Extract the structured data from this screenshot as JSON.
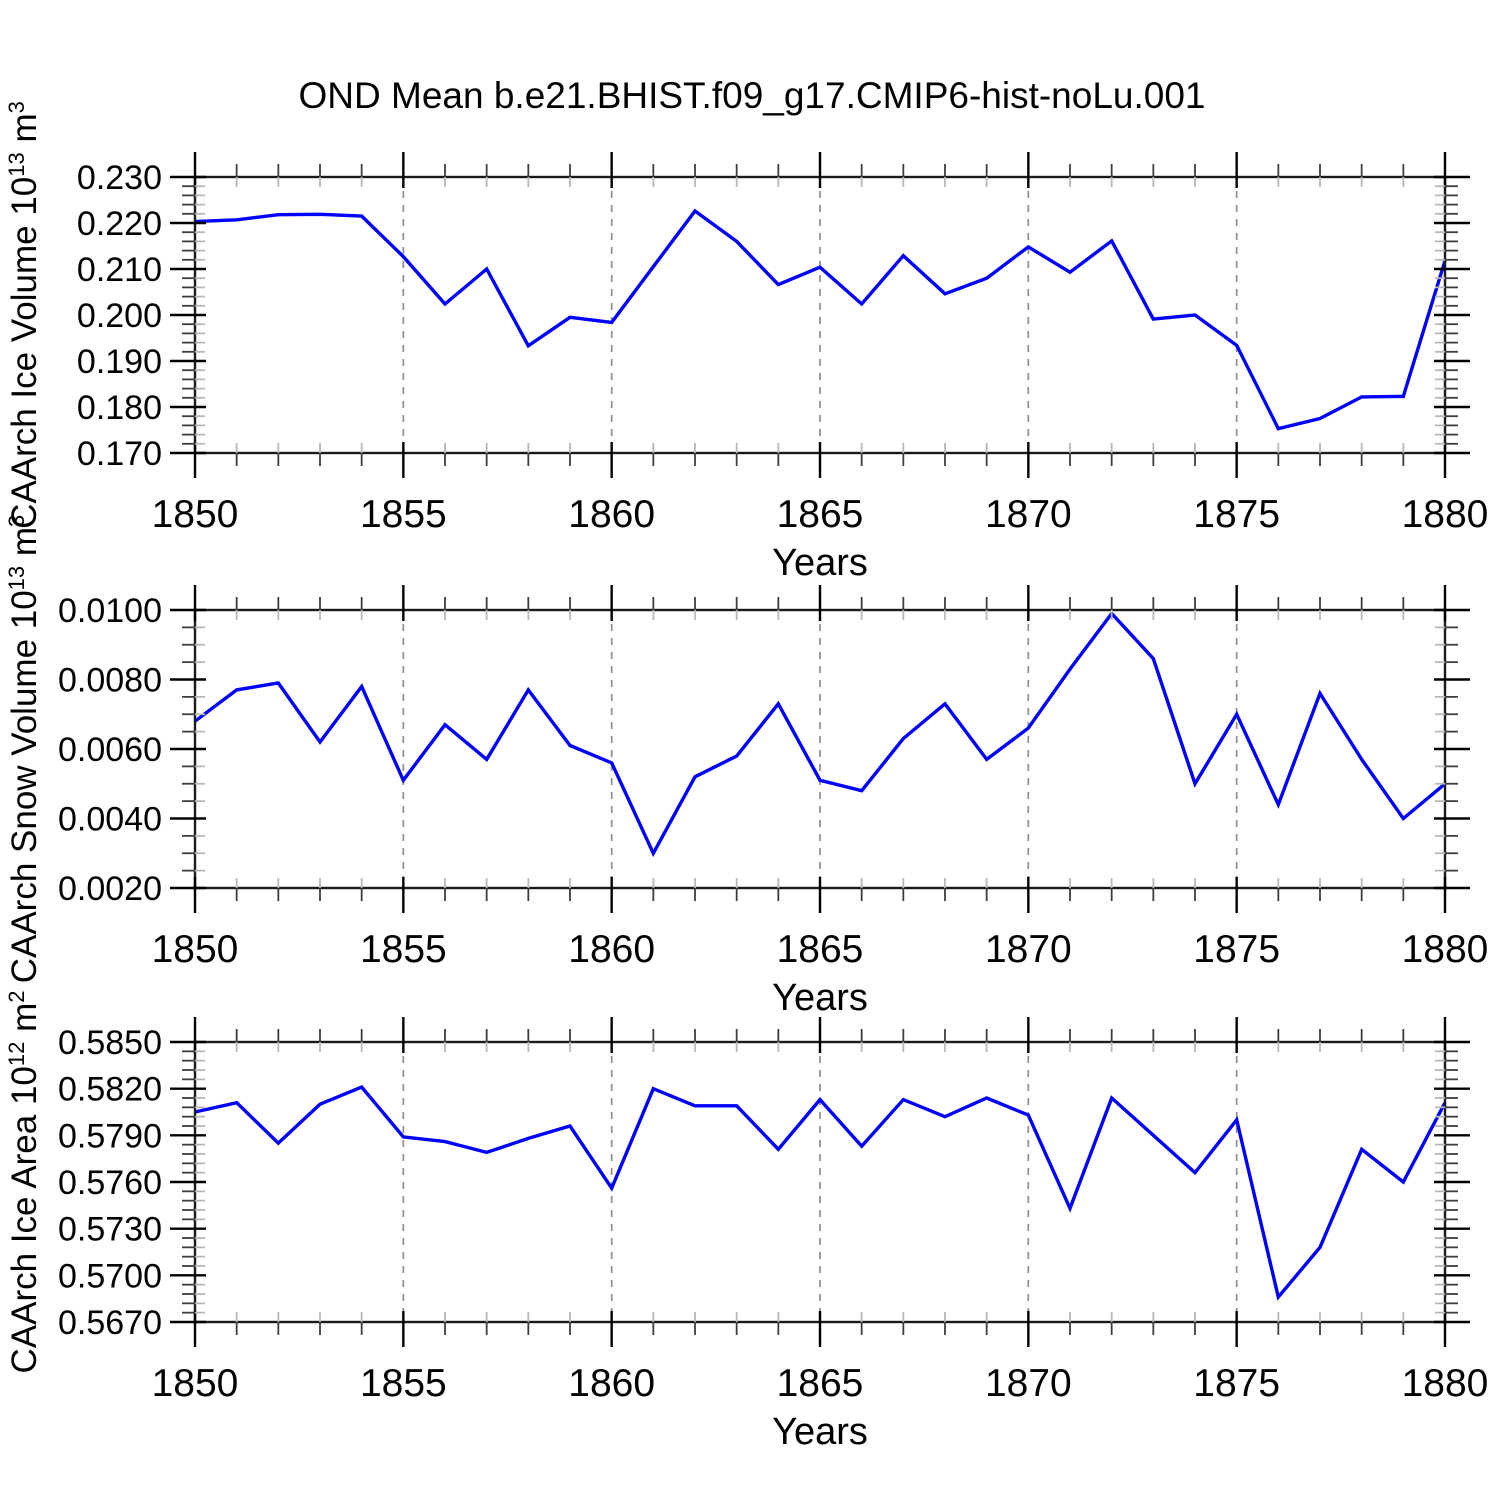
{
  "title": "OND Mean b.e21.BHIST.f09_g17.CMIP6-hist-noLu.001",
  "colors": {
    "line": "#0000ff",
    "border": "#1a1a1a",
    "major_tick": "#000000",
    "minor_tick": "#3d3d3d",
    "minor_tick_inner": "#b8b8b8",
    "gridline": "#8e8e8e",
    "text": "#000000",
    "background": "#ffffff"
  },
  "x_axis": {
    "label": "Years",
    "min": 1850,
    "max": 1880,
    "minor_step": 1,
    "major_tick_values": [
      1850,
      1855,
      1860,
      1865,
      1870,
      1875,
      1880
    ],
    "major_tick_labels": [
      "1850",
      "1855",
      "1860",
      "1865",
      "1870",
      "1875",
      "1880"
    ],
    "gridline_values": [
      1855,
      1860,
      1865,
      1870,
      1875
    ]
  },
  "chart_data": [
    {
      "type": "line",
      "name": "ice-volume",
      "ylabel_segments": [
        {
          "text": "CAArch Ice Volume 10",
          "sup": false
        },
        {
          "text": "13",
          "sup": true
        },
        {
          "text": " m",
          "sup": false
        },
        {
          "text": "3",
          "sup": true
        }
      ],
      "xlabel": "Years",
      "ymin": 0.17,
      "ymax": 0.23,
      "ymajor": 0.01,
      "yminor": 0.002,
      "ytick_labels": [
        "0.170",
        "0.180",
        "0.190",
        "0.200",
        "0.210",
        "0.220",
        "0.230"
      ],
      "years": [
        1850,
        1851,
        1852,
        1853,
        1854,
        1855,
        1856,
        1857,
        1858,
        1859,
        1860,
        1861,
        1862,
        1863,
        1864,
        1865,
        1866,
        1867,
        1868,
        1869,
        1870,
        1871,
        1872,
        1873,
        1874,
        1875,
        1876,
        1877,
        1878,
        1879,
        1880
      ],
      "values": [
        0.2203,
        0.2207,
        0.2218,
        0.2219,
        0.2215,
        0.2127,
        0.2024,
        0.21,
        0.1933,
        0.1995,
        0.1984,
        0.2105,
        0.2226,
        0.216,
        0.2066,
        0.2104,
        0.2024,
        0.2129,
        0.2046,
        0.208,
        0.2148,
        0.2093,
        0.2161,
        0.1991,
        0.2,
        0.1934,
        0.1753,
        0.1775,
        0.1822,
        0.1823,
        0.2118
      ]
    },
    {
      "type": "line",
      "name": "snow-volume",
      "ylabel_segments": [
        {
          "text": "CAArch Snow Volume 10",
          "sup": false
        },
        {
          "text": "13",
          "sup": true
        },
        {
          "text": " m",
          "sup": false
        },
        {
          "text": "3",
          "sup": true
        }
      ],
      "xlabel": "Years",
      "ymin": 0.002,
      "ymax": 0.01,
      "ymajor": 0.002,
      "yminor": 0.0005,
      "ytick_labels": [
        "0.0020",
        "0.0040",
        "0.0060",
        "0.0080",
        "0.0100"
      ],
      "years": [
        1850,
        1851,
        1852,
        1853,
        1854,
        1855,
        1856,
        1857,
        1858,
        1859,
        1860,
        1861,
        1862,
        1863,
        1864,
        1865,
        1866,
        1867,
        1868,
        1869,
        1870,
        1871,
        1872,
        1873,
        1874,
        1875,
        1876,
        1877,
        1878,
        1879,
        1880
      ],
      "values": [
        0.0068,
        0.0077,
        0.0079,
        0.0062,
        0.0078,
        0.0051,
        0.0067,
        0.0057,
        0.0077,
        0.0061,
        0.0056,
        0.003,
        0.0052,
        0.0058,
        0.0073,
        0.0051,
        0.0048,
        0.0063,
        0.0073,
        0.0057,
        0.0066,
        0.0083,
        0.0099,
        0.0086,
        0.005,
        0.007,
        0.0044,
        0.0076,
        0.0057,
        0.004,
        0.005
      ]
    },
    {
      "type": "line",
      "name": "ice-area",
      "ylabel_segments": [
        {
          "text": "CAArch Ice Area 10",
          "sup": false
        },
        {
          "text": "12",
          "sup": true
        },
        {
          "text": " m",
          "sup": false
        },
        {
          "text": "2",
          "sup": true
        }
      ],
      "xlabel": "Years",
      "ymin": 0.567,
      "ymax": 0.585,
      "ymajor": 0.003,
      "yminor": 0.0006,
      "ytick_labels": [
        "0.5670",
        "0.5700",
        "0.5730",
        "0.5760",
        "0.5790",
        "0.5820",
        "0.5850"
      ],
      "years": [
        1850,
        1851,
        1852,
        1853,
        1854,
        1855,
        1856,
        1857,
        1858,
        1859,
        1860,
        1861,
        1862,
        1863,
        1864,
        1865,
        1866,
        1867,
        1868,
        1869,
        1870,
        1871,
        1872,
        1873,
        1874,
        1875,
        1876,
        1877,
        1878,
        1879,
        1880
      ],
      "values": [
        0.5805,
        0.5811,
        0.5785,
        0.581,
        0.5821,
        0.5789,
        0.5786,
        0.5779,
        0.5788,
        0.5796,
        0.5756,
        0.582,
        0.5809,
        0.5809,
        0.5781,
        0.5813,
        0.5783,
        0.5813,
        0.5802,
        0.5814,
        0.5803,
        0.5743,
        0.5814,
        0.579,
        0.5766,
        0.58,
        0.5686,
        0.5718,
        0.5781,
        0.576,
        0.5811
      ]
    }
  ]
}
